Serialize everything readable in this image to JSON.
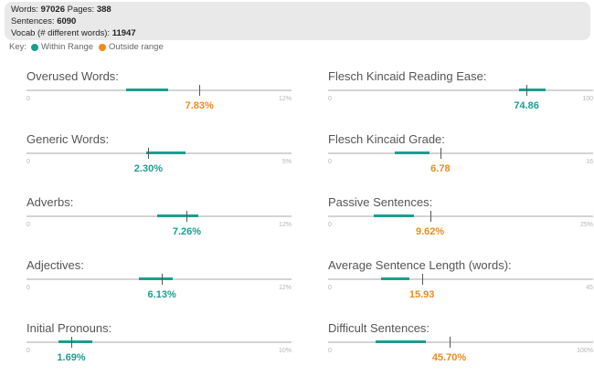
{
  "stats": {
    "words_label": "Words:",
    "words_value": "97026",
    "pages_label": "Pages:",
    "pages_value": "388",
    "sentences_label": "Sentences:",
    "sentences_value": "6090",
    "vocab_label": "Vocab (# different words):",
    "vocab_value": "11947"
  },
  "key": {
    "label": "Key:",
    "within": "Within Range",
    "outside": "Outside range",
    "within_color": "#1a9e91",
    "outside_color": "#f08a1c"
  },
  "metrics": [
    {
      "label": "Overused Words:",
      "value": "7.83%",
      "min": "0",
      "max": "12%",
      "numeric": 7.83,
      "scale_max": 12,
      "range": [
        4.5,
        6.4
      ],
      "status": "outside"
    },
    {
      "label": "Generic Words:",
      "value": "2.30%",
      "min": "0",
      "max": "5%",
      "numeric": 2.3,
      "scale_max": 5,
      "range": [
        2.25,
        3.0
      ],
      "status": "within"
    },
    {
      "label": "Adverbs:",
      "value": "7.26%",
      "min": "0",
      "max": "12%",
      "numeric": 7.26,
      "scale_max": 12,
      "range": [
        5.9,
        7.8
      ],
      "status": "within"
    },
    {
      "label": "Adjectives:",
      "value": "6.13%",
      "min": "0",
      "max": "12%",
      "numeric": 6.13,
      "scale_max": 12,
      "range": [
        5.1,
        6.6
      ],
      "status": "within"
    },
    {
      "label": "Initial Pronouns:",
      "value": "1.69%",
      "min": "0",
      "max": "10%",
      "numeric": 1.69,
      "scale_max": 10,
      "range": [
        1.2,
        2.5
      ],
      "status": "within"
    },
    {
      "label": "Flesch Kincaid Reading Ease:",
      "value": "74.86",
      "min": "0",
      "max": "100",
      "numeric": 74.86,
      "scale_max": 100,
      "range": [
        72,
        82
      ],
      "status": "within"
    },
    {
      "label": "Flesch Kincaid Grade:",
      "value": "6.78",
      "min": "0",
      "max": "16",
      "numeric": 6.78,
      "scale_max": 16,
      "range": [
        4.0,
        6.1
      ],
      "status": "outside"
    },
    {
      "label": "Passive Sentences:",
      "value": "9.62%",
      "min": "0",
      "max": "25%",
      "numeric": 9.62,
      "scale_max": 25,
      "range": [
        4.3,
        8.1
      ],
      "status": "outside"
    },
    {
      "label": "Average Sentence Length (words):",
      "value": "15.93",
      "min": "0",
      "max": "45",
      "numeric": 15.93,
      "scale_max": 45,
      "range": [
        9.0,
        13.8
      ],
      "status": "outside"
    },
    {
      "label": "Difficult Sentences:",
      "value": "45.70%",
      "min": "0",
      "max": "100%",
      "numeric": 45.7,
      "scale_max": 100,
      "range": [
        18,
        37
      ],
      "status": "outside"
    }
  ]
}
